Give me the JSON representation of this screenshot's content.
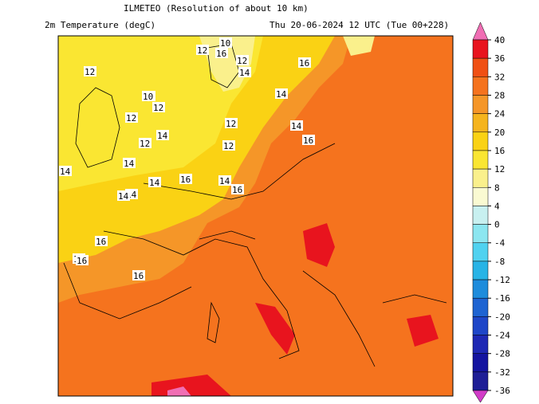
{
  "header": {
    "title": "ILMETEO (Resolution of about 10 km)",
    "left": "2m Temperature (degC)",
    "right": "Thu 20-06-2024 12 UTC (Tue 00+228)"
  },
  "map": {
    "contour_labels": [
      12,
      10,
      12,
      16,
      12,
      12,
      14,
      16,
      14,
      10,
      12,
      12,
      14,
      12,
      12,
      14,
      12,
      14,
      14,
      16,
      14,
      14,
      16,
      14,
      16,
      14,
      16,
      16,
      16,
      16
    ]
  },
  "colorbar": {
    "ticks": [
      40,
      36,
      32,
      28,
      24,
      20,
      16,
      12,
      8,
      4,
      0,
      -4,
      -8,
      -12,
      -16,
      -20,
      -24,
      -28,
      -32,
      -36
    ],
    "colors": [
      "#e8141e",
      "#f05014",
      "#f5731e",
      "#f59628",
      "#f5b41e",
      "#fad214",
      "#fae632",
      "#faf08c",
      "#fafad2",
      "#c8f0f0",
      "#8ce6f0",
      "#50d2f0",
      "#28b4e6",
      "#1e8cdc",
      "#1e64d2",
      "#1e46c8",
      "#1e28b4",
      "#1414a0",
      "#1e1e96"
    ],
    "top_color": "#f06eb4",
    "bottom_color": "#d23cc8"
  }
}
